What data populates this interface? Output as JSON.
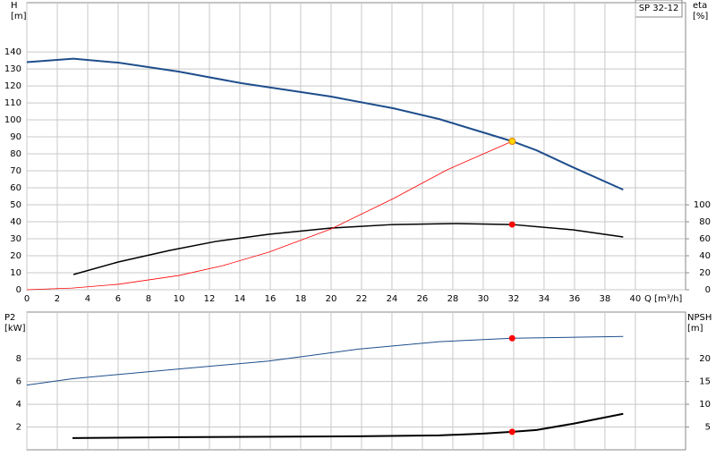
{
  "chart_data": [
    {
      "type": "line",
      "legend_label": "SP 32-12",
      "ylabel": [
        "H",
        "[m]"
      ],
      "y2label": [
        "eta",
        "[%]"
      ],
      "xlabel": "Q [m³/h]",
      "xlim": [
        0,
        43.3
      ],
      "xticks": [
        0,
        2,
        4,
        6,
        8,
        10,
        12,
        14,
        16,
        18,
        20,
        22,
        24,
        26,
        28,
        30,
        32,
        34,
        36,
        38,
        40
      ],
      "show_xtick_labels": true,
      "ylim": [
        0,
        169
      ],
      "yticks": [
        0,
        10,
        20,
        30,
        40,
        50,
        60,
        70,
        80,
        90,
        100,
        110,
        120,
        130,
        140
      ],
      "y2lim": [
        0,
        338
      ],
      "y2ticks": [
        0,
        20,
        40,
        60,
        80,
        100
      ],
      "grid": true,
      "series": [
        {
          "color": "#1f4e8c",
          "width": 2,
          "axis": "y",
          "x": [
            0,
            3.06,
            6,
            10,
            14.1,
            20,
            24.1,
            27.1,
            30,
            31.9,
            33.5,
            35.9,
            39.2
          ],
          "values": [
            134,
            136,
            133.7,
            128.4,
            121.6,
            113.7,
            106.8,
            100.5,
            92.6,
            87.4,
            82.1,
            72.1,
            58.9
          ]
        },
        {
          "color": "#000000",
          "width": 1.5,
          "axis": "y2",
          "x": [
            3.06,
            6,
            9.4,
            12.4,
            15.9,
            20,
            24.1,
            28.2,
            31.9,
            35.9,
            39.2
          ],
          "values": [
            17.9,
            32.6,
            46.3,
            56.8,
            65.3,
            72.6,
            76.8,
            77.9,
            76.8,
            70.5,
            62.1
          ]
        },
        {
          "color": "#ff0000",
          "width": 0.8,
          "axis": "y",
          "x": [
            0,
            3,
            6,
            10,
            12.9,
            15.9,
            20,
            24.1,
            27.6,
            31.9
          ],
          "values": [
            0,
            1,
            3.2,
            8.4,
            14.2,
            22.1,
            35.8,
            53.7,
            70.5,
            87.4
          ]
        }
      ],
      "markers": [
        {
          "x": 31.9,
          "value": 87.4,
          "axis": "y",
          "color": "#ffd700"
        },
        {
          "x": 31.9,
          "value": 76.8,
          "axis": "y2",
          "color": "#ff0000"
        }
      ]
    },
    {
      "type": "line",
      "ylabel": [
        "P2",
        "[kW]"
      ],
      "y2label": [
        "NPSH",
        "[m]"
      ],
      "xlim": [
        0,
        43.3
      ],
      "xticks": [
        0,
        2,
        4,
        6,
        8,
        10,
        12,
        14,
        16,
        18,
        20,
        22,
        24,
        26,
        28,
        30,
        32,
        34,
        36,
        38,
        40
      ],
      "show_xtick_labels": false,
      "ylim": [
        0,
        12.1
      ],
      "yticks": [
        2,
        4,
        6,
        8
      ],
      "y2lim": [
        0,
        30.25
      ],
      "y2ticks": [
        5,
        10,
        15,
        20
      ],
      "grid": true,
      "series": [
        {
          "color": "#1f4e8c",
          "width": 1,
          "axis": "y",
          "x": [
            0,
            3,
            10,
            15.9,
            21.8,
            27.1,
            31.9,
            39.2
          ],
          "values": [
            5.69,
            6.25,
            7.1,
            7.8,
            8.85,
            9.5,
            9.8,
            9.96
          ]
        },
        {
          "color": "#000000",
          "width": 2,
          "axis": "y2",
          "x": [
            3,
            10,
            21.8,
            27.1,
            30,
            31.9,
            33.5,
            35.9,
            39.2
          ],
          "values": [
            2.57,
            2.77,
            2.96,
            3.16,
            3.56,
            3.95,
            4.35,
            5.73,
            7.9
          ]
        }
      ],
      "markers": [
        {
          "x": 31.9,
          "value": 9.8,
          "axis": "y",
          "color": "#ff0000"
        },
        {
          "x": 31.9,
          "value": 3.95,
          "axis": "y2",
          "color": "#ff0000"
        }
      ]
    }
  ]
}
